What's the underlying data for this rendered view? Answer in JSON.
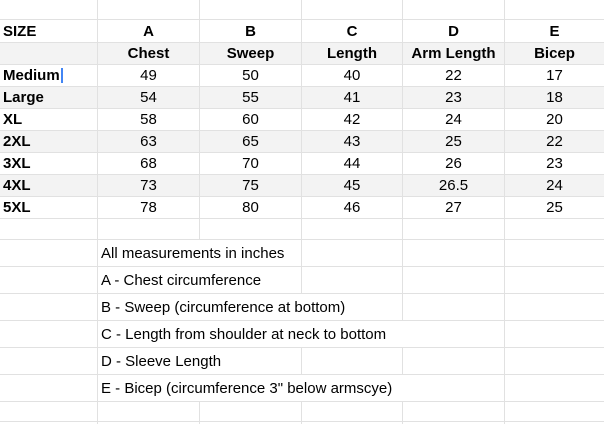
{
  "sheet": {
    "corner_label": "SIZE",
    "column_letters": [
      "A",
      "B",
      "C",
      "D",
      "E"
    ],
    "column_headers": [
      "Chest",
      "Sweep",
      "Length",
      "Arm Length",
      "Bicep"
    ],
    "rows": [
      {
        "size": "Medium",
        "values": [
          "49",
          "50",
          "40",
          "22",
          "17"
        ]
      },
      {
        "size": "Large",
        "values": [
          "54",
          "55",
          "41",
          "23",
          "18"
        ]
      },
      {
        "size": "XL",
        "values": [
          "58",
          "60",
          "42",
          "24",
          "20"
        ]
      },
      {
        "size": "2XL",
        "values": [
          "63",
          "65",
          "43",
          "25",
          "22"
        ]
      },
      {
        "size": "3XL",
        "values": [
          "68",
          "70",
          "44",
          "26",
          "23"
        ]
      },
      {
        "size": "4XL",
        "values": [
          "73",
          "75",
          "45",
          "26.5",
          "24"
        ]
      },
      {
        "size": "5XL",
        "values": [
          "78",
          "80",
          "46",
          "27",
          "25"
        ]
      }
    ],
    "notes": [
      "All measurements in inches",
      "A - Chest circumference",
      "B - Sweep (circumference at bottom)",
      "C - Length from shoulder at neck to bottom",
      "D - Sleeve Length",
      "E - Bicep (circumference 3\" below armscye)"
    ],
    "colors": {
      "row_band": "#f3f3f3",
      "gridline": "#e1e1e1",
      "caret_blue": "#4285f4",
      "text": "#000000",
      "background": "#ffffff"
    }
  }
}
